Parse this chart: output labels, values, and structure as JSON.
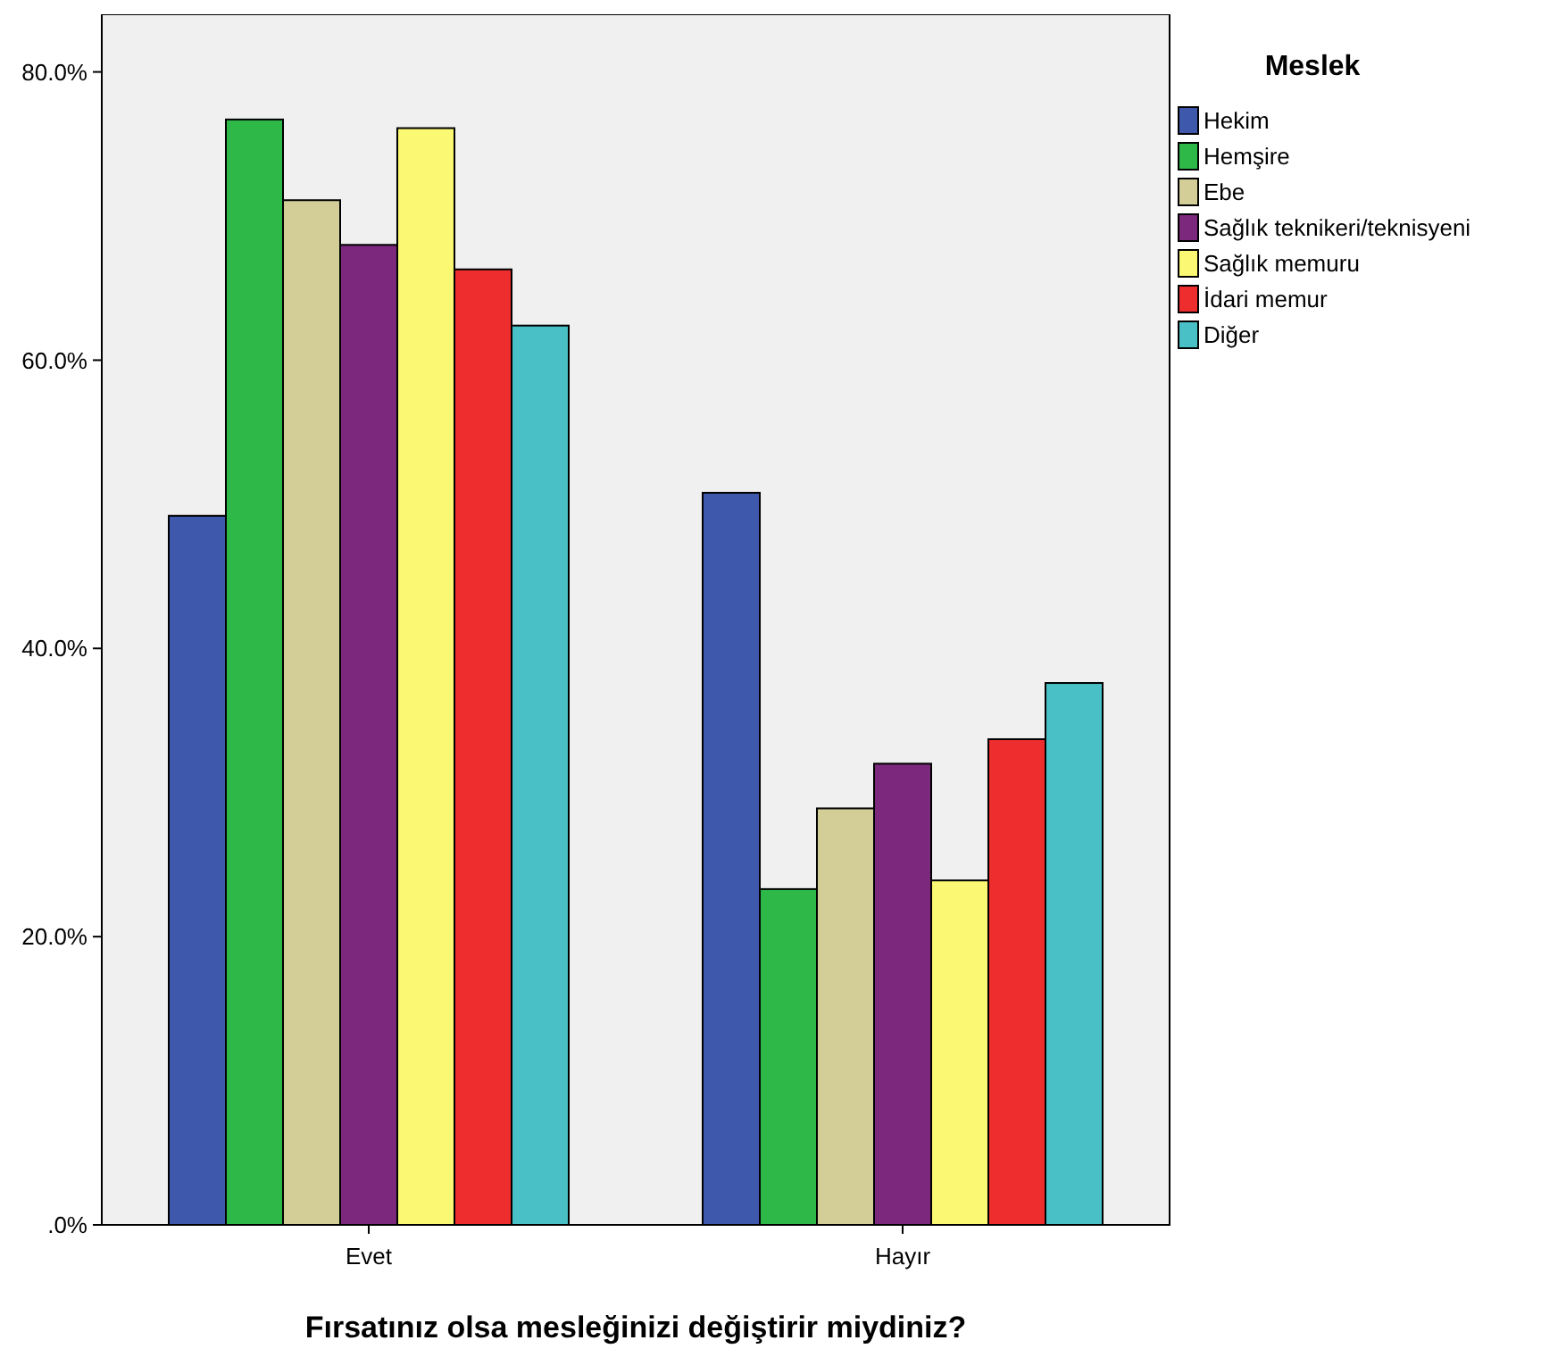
{
  "chart_data": {
    "type": "bar",
    "xlabel": "Fırsatınız olsa mesleğinizi değiştirir miydiniz?",
    "legend_title": "Meslek",
    "legend": "right",
    "categories": [
      "Evet",
      "Hayır"
    ],
    "series": [
      {
        "name": "Hekim",
        "color": "#3e58ac",
        "values": [
          49.2,
          50.8
        ]
      },
      {
        "name": "Hemşire",
        "color": "#2eb848",
        "values": [
          76.7,
          23.3
        ]
      },
      {
        "name": "Ebe",
        "color": "#d3ce97",
        "values": [
          71.1,
          28.9
        ]
      },
      {
        "name": "Sağlık teknikeri/teknisyeni",
        "color": "#7b287d",
        "values": [
          68.0,
          32.0
        ]
      },
      {
        "name": "Sağlık memuru",
        "color": "#fbf873",
        "values": [
          76.1,
          23.9
        ]
      },
      {
        "name": "İdari memur",
        "color": "#ed2d2e",
        "values": [
          66.3,
          33.7
        ]
      },
      {
        "name": "Diğer",
        "color": "#48c0c5",
        "values": [
          62.4,
          37.6
        ]
      }
    ],
    "ylim": [
      0,
      84
    ],
    "yticks": [
      {
        "value": 0,
        "label": ".0%"
      },
      {
        "value": 20,
        "label": "20.0%"
      },
      {
        "value": 40,
        "label": "40.0%"
      },
      {
        "value": 60,
        "label": "60.0%"
      },
      {
        "value": 80,
        "label": "80.0%"
      }
    ]
  }
}
